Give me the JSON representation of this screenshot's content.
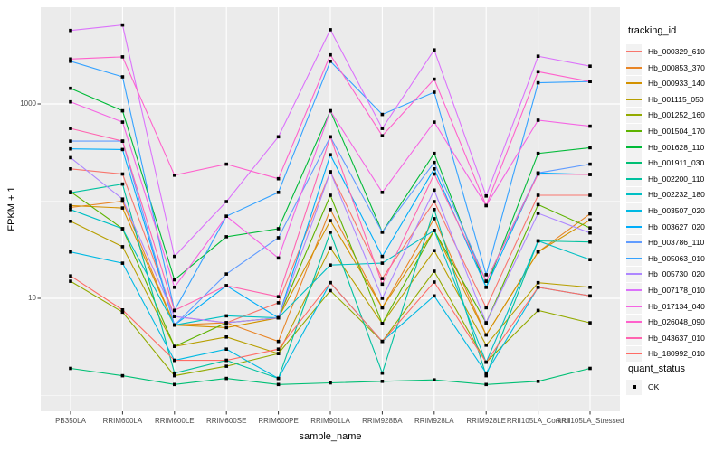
{
  "chart_data": {
    "type": "line",
    "title": "",
    "xlabel": "sample_name",
    "ylabel": "FPKM + 1",
    "y_scale": "log10",
    "y_axis_ticks": [
      "10",
      "1000"
    ],
    "y_major_breaks": [
      10,
      1000
    ],
    "y_minor_breaks": [
      1,
      100
    ],
    "y_range_approx": [
      0.7,
      9900
    ],
    "grid": "on",
    "legend_position": "right",
    "point_shape": "small-black-square",
    "categories": [
      "PB350LA",
      "RRIM600LA",
      "RRIM600LE",
      "RRIM600SE",
      "RRIM600PE",
      "RRIM901LA",
      "RRIM928BA",
      "RRIM928LA",
      "RRIM928LE",
      "RRII105LA_Control",
      "RRII105LA_Stressed"
    ],
    "series": [
      {
        "name": "Hb_000329_610",
        "color": "#F8766D",
        "values": [
          215,
          190,
          6.5,
          5.6,
          9,
          200,
          16,
          99,
          8,
          115,
          115
        ]
      },
      {
        "name": "Hb_000853_370",
        "color": "#E88526",
        "values": [
          86,
          100,
          5.3,
          5.6,
          3.6,
          82,
          8,
          66,
          4.2,
          30,
          74
        ]
      },
      {
        "name": "Hb_000933_140",
        "color": "#D39200",
        "values": [
          90,
          85,
          5.3,
          5,
          6.3,
          63,
          8,
          50,
          4.2,
          30,
          64
        ]
      },
      {
        "name": "Hb_001115_050",
        "color": "#B79F00",
        "values": [
          62,
          34,
          3.2,
          4,
          2.7,
          33,
          5.5,
          31,
          3.3,
          14.5,
          13
        ]
      },
      {
        "name": "Hb_001252_160",
        "color": "#93AA00",
        "values": [
          15,
          7.2,
          1.6,
          2,
          2.7,
          12,
          3.6,
          19,
          2.2,
          7.5,
          5.6
        ]
      },
      {
        "name": "Hb_001504_170",
        "color": "#5EB300",
        "values": [
          125,
          52,
          3.2,
          5.6,
          6.3,
          115,
          5.5,
          50,
          5.6,
          92,
          53
        ]
      },
      {
        "name": "Hb_001628_110",
        "color": "#00BA38",
        "values": [
          1450,
          850,
          15.5,
          43,
          52,
          850,
          48,
          310,
          13,
          310,
          355
        ]
      },
      {
        "name": "Hb_001911_030",
        "color": "#00BF74",
        "values": [
          1.9,
          1.6,
          1.3,
          1.5,
          1.3,
          1.35,
          1.4,
          1.45,
          1.3,
          1.4,
          1.9
        ]
      },
      {
        "name": "Hb_002200_110",
        "color": "#00C19F",
        "values": [
          122,
          150,
          1.7,
          2.3,
          1.5,
          48,
          1.7,
          82,
          1.6,
          39,
          38
        ]
      },
      {
        "name": "Hb_002232_180",
        "color": "#00BFC4",
        "values": [
          82,
          52,
          5.3,
          6.6,
          6.3,
          22,
          23,
          50,
          2.2,
          39,
          25
        ]
      },
      {
        "name": "Hb_003507_020",
        "color": "#00B9E3",
        "values": [
          30,
          23,
          2.3,
          3,
          1.5,
          14.5,
          3.6,
          10.6,
          1.7,
          13,
          10.6
        ]
      },
      {
        "name": "Hb_003627_020",
        "color": "#00ADFA",
        "values": [
          345,
          340,
          5.3,
          13.5,
          6.3,
          300,
          27,
          215,
          13,
          195,
          188
        ]
      },
      {
        "name": "Hb_003786_110",
        "color": "#619CFF",
        "values": [
          415,
          415,
          5.3,
          17.8,
          42,
          460,
          48,
          250,
          15,
          195,
          240
        ]
      },
      {
        "name": "Hb_005063_010",
        "color": "#35A2FF",
        "values": [
          2750,
          1900,
          7.5,
          70,
          123,
          2750,
          780,
          1320,
          17.5,
          1650,
          1700
        ]
      },
      {
        "name": "Hb_005730_020",
        "color": "#AE87FF",
        "values": [
          280,
          105,
          6.5,
          5.6,
          6.3,
          200,
          10,
          130,
          5.6,
          75,
          47
        ]
      },
      {
        "name": "Hb_007178_010",
        "color": "#DB72FB",
        "values": [
          5700,
          6500,
          27,
          99,
          460,
          5800,
          560,
          3600,
          113,
          3100,
          2450
        ]
      },
      {
        "name": "Hb_017134_040",
        "color": "#F564E3",
        "values": [
          1050,
          650,
          13,
          70,
          26,
          850,
          123,
          650,
          90,
          680,
          590
        ]
      },
      {
        "name": "Hb_026048_090",
        "color": "#FF61CC",
        "values": [
          2900,
          3050,
          185,
          240,
          170,
          3200,
          470,
          1800,
          90,
          2150,
          1700
        ]
      },
      {
        "name": "Hb_043637_010",
        "color": "#FF64B0",
        "values": [
          560,
          415,
          7.5,
          13.5,
          10.4,
          460,
          14,
          190,
          15,
          190,
          188
        ]
      },
      {
        "name": "Hb_180992_010",
        "color": "#FF6C65",
        "values": [
          17,
          7.6,
          2.3,
          2.3,
          3,
          14.5,
          3.6,
          14.7,
          2.2,
          13,
          10.6
        ]
      }
    ]
  },
  "legend": {
    "title": "tracking_id"
  },
  "legend2": {
    "title": "quant_status",
    "items": [
      {
        "label": "OK"
      }
    ]
  },
  "colors": {
    "panel_bg": "#EBEBEB",
    "grid": "#FFFFFF",
    "axis_text": "#4D4D4D",
    "tick_mark": "#333333",
    "point": "#000000",
    "legend_key_bg": "#F2F2F2"
  }
}
